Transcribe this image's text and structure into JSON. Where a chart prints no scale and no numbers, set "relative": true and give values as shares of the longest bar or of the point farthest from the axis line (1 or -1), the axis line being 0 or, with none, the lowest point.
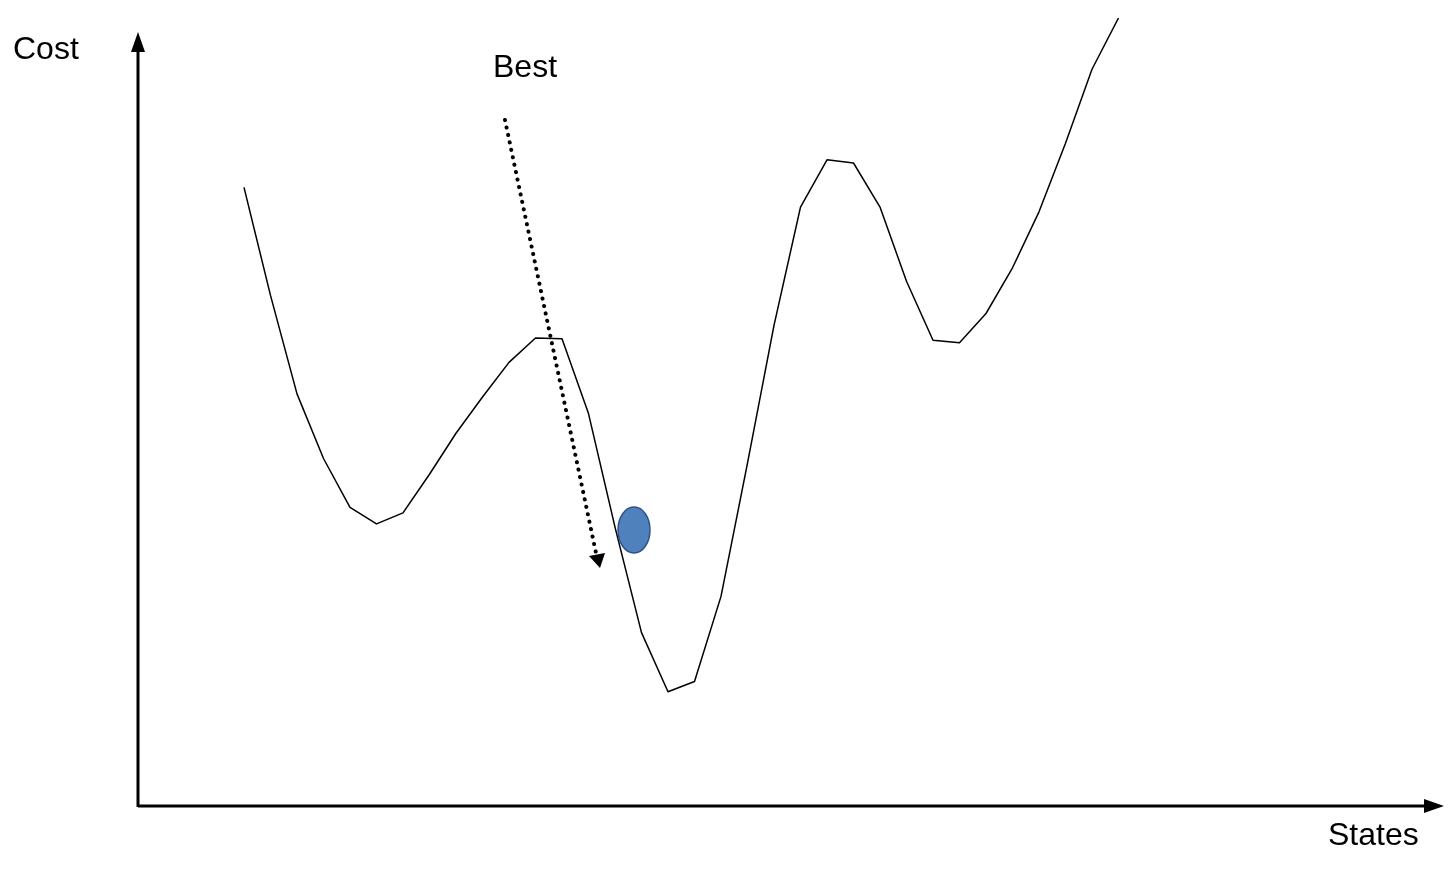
{
  "chart_data": {
    "type": "line",
    "relative": true,
    "xlabel": "States",
    "ylabel": "Cost",
    "annotations": [
      "Best"
    ],
    "legend": false,
    "grid": false,
    "marker": "none",
    "categories": [
      null,
      null,
      null,
      null,
      null,
      null,
      null,
      null,
      null,
      null,
      null,
      null,
      null,
      null,
      null,
      null,
      null,
      null,
      null,
      null,
      null,
      null,
      null,
      null,
      null,
      null,
      null,
      null,
      null,
      null,
      null,
      null,
      null,
      null,
      null,
      null,
      null,
      null,
      null,
      null,
      null,
      null,
      null,
      null,
      null,
      null,
      null,
      null,
      null
    ],
    "series": [
      {
        "color": "#000000",
        "values": [
          null,
          null,
          null,
          null,
          0.785,
          0.648,
          0.523,
          0.441,
          0.379,
          0.358,
          0.372,
          0.421,
          0.473,
          0.519,
          0.563,
          0.594,
          0.593,
          0.498,
          0.354,
          0.22,
          0.145,
          0.158,
          0.266,
          0.435,
          0.61,
          0.76,
          0.82,
          0.816,
          0.76,
          0.666,
          0.591,
          0.588,
          0.625,
          0.683,
          0.754,
          0.841,
          0.935,
          1,
          null,
          null,
          null,
          null,
          null,
          null,
          null,
          null,
          null,
          null,
          null
        ]
      }
    ]
  }
}
